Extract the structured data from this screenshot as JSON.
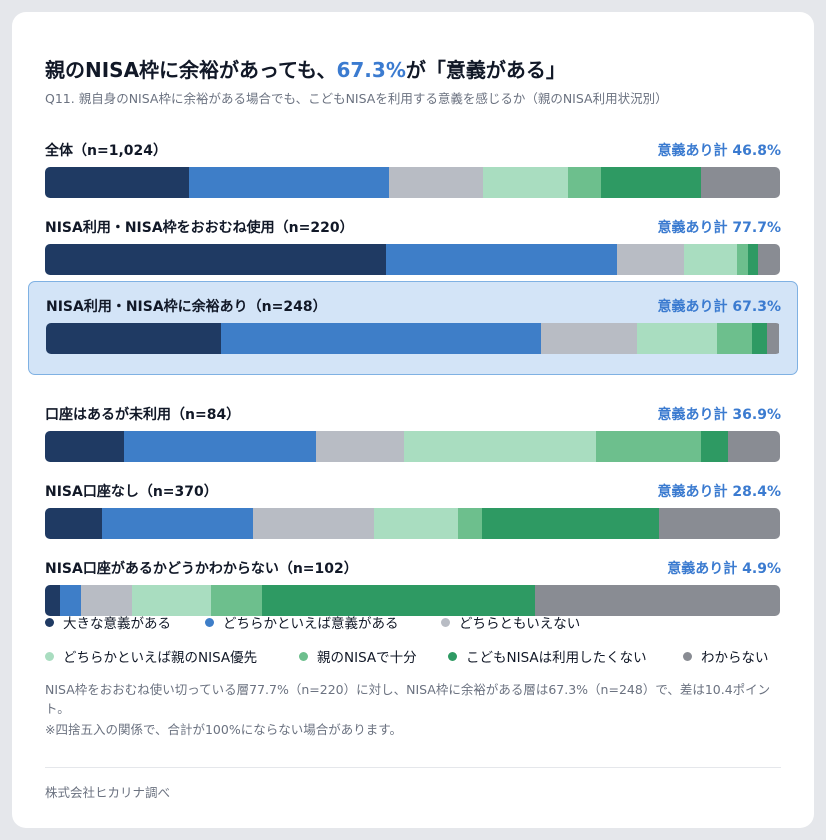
{
  "title": {
    "prefix": "親のNISA枠に余裕があっても、",
    "highlight": "67.3%",
    "suffix": "が「意義がある」"
  },
  "subtitle": "Q11. 親自身のNISA枠に余裕がある場合でも、こどもNISAを利用する意義を感じるか（親のNISA利用状況別）",
  "colors": {
    "accent": "#3b7bd0",
    "highlight_bg": "#d3e4f7",
    "highlight_border": "#7fb1e3"
  },
  "chart_data": {
    "type": "bar",
    "orientation": "horizontal-stacked-100",
    "categories": [
      "全体（n=1,024）",
      "NISA利用・NISA枠をおおむね使用（n=220）",
      "NISA利用・NISA枠に余裕あり（n=248）",
      "口座はあるが未利用（n=84）",
      "NISA口座なし（n=370）",
      "NISA口座があるかどうかわからない（n=102）"
    ],
    "totals": [
      "意義あり計 46.8%",
      "意義あり計 77.7%",
      "意義あり計 67.3%",
      "意義あり計 36.9%",
      "意義あり計 28.4%",
      "意義あり計 4.9%"
    ],
    "highlight_index": 2,
    "series": [
      {
        "name": "大きな意義がある",
        "color": "#1f3a63",
        "values": [
          19.6,
          46.4,
          23.8,
          10.7,
          7.8,
          2.0
        ]
      },
      {
        "name": "どちらかといえば意義がある",
        "color": "#3e7ec8",
        "values": [
          27.2,
          31.4,
          43.5,
          26.2,
          20.5,
          2.9
        ]
      },
      {
        "name": "どちらともいえない",
        "color": "#b8bcc4",
        "values": [
          12.8,
          9.1,
          13.1,
          11.9,
          16.5,
          6.9
        ]
      },
      {
        "name": "どちらかといえば親のNISA優先",
        "color": "#a9ddc0",
        "values": [
          11.5,
          7.3,
          10.9,
          26.2,
          11.4,
          10.8
        ]
      },
      {
        "name": "親のNISAで十分",
        "color": "#6dbf8d",
        "values": [
          4.5,
          1.4,
          4.8,
          14.3,
          3.2,
          6.9
        ]
      },
      {
        "name": "こどもNISAは利用したくない",
        "color": "#2e9a63",
        "values": [
          13.6,
          1.4,
          2.0,
          3.6,
          24.1,
          37.3
        ]
      },
      {
        "name": "わからない",
        "color": "#898c93",
        "values": [
          10.8,
          3.0,
          1.6,
          7.1,
          16.5,
          33.3
        ]
      }
    ],
    "xlim": [
      0,
      100
    ]
  },
  "notes": [
    "NISA枠をおおむね使い切っている層77.7%（n=220）に対し、NISA枠に余裕がある層は67.3%（n=248）で、差は10.4ポイント。",
    "※四捨五入の関係で、合計が100%にならない場合があります。"
  ],
  "source": "株式会社ヒカリナ調べ"
}
